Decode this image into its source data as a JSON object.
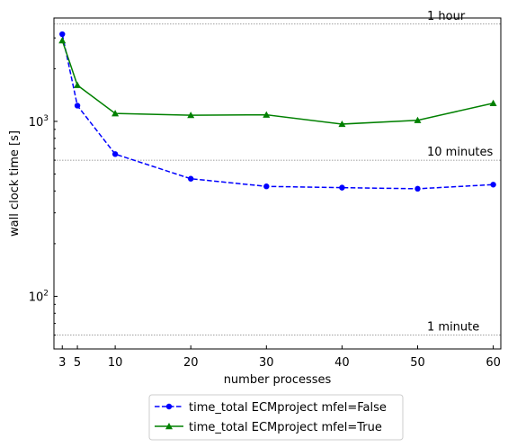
{
  "chart_data": {
    "type": "line",
    "xlabel": "number processes",
    "ylabel": "wall clock time [s]",
    "y_scale": "log",
    "xlim": [
      1.9,
      61
    ],
    "ylim": [
      50,
      3900
    ],
    "grid": false,
    "legend_position": "below",
    "x_ticks": [
      3,
      5,
      10,
      20,
      30,
      40,
      50,
      60
    ],
    "y_ticks": [
      {
        "value": 100,
        "base": "10",
        "exp": "2"
      },
      {
        "value": 1000,
        "base": "10",
        "exp": "3"
      }
    ],
    "x": [
      3,
      5,
      10,
      20,
      30,
      40,
      50,
      60
    ],
    "series": [
      {
        "name": "time_total ECMproject mfel=False",
        "color": "#0000ff",
        "line_style": "dashed",
        "marker": "circle",
        "values": [
          3150,
          1230,
          650,
          470,
          425,
          418,
          412,
          435
        ]
      },
      {
        "name": "time_total ECMproject mfel=True",
        "color": "#008000",
        "line_style": "solid",
        "marker": "triangle",
        "values": [
          2900,
          1610,
          1110,
          1085,
          1090,
          965,
          1015,
          1270
        ]
      }
    ],
    "reference_lines": [
      {
        "value": 3600,
        "label": "1 hour"
      },
      {
        "value": 600,
        "label": "10 minutes"
      },
      {
        "value": 60,
        "label": "1 minute"
      }
    ]
  }
}
